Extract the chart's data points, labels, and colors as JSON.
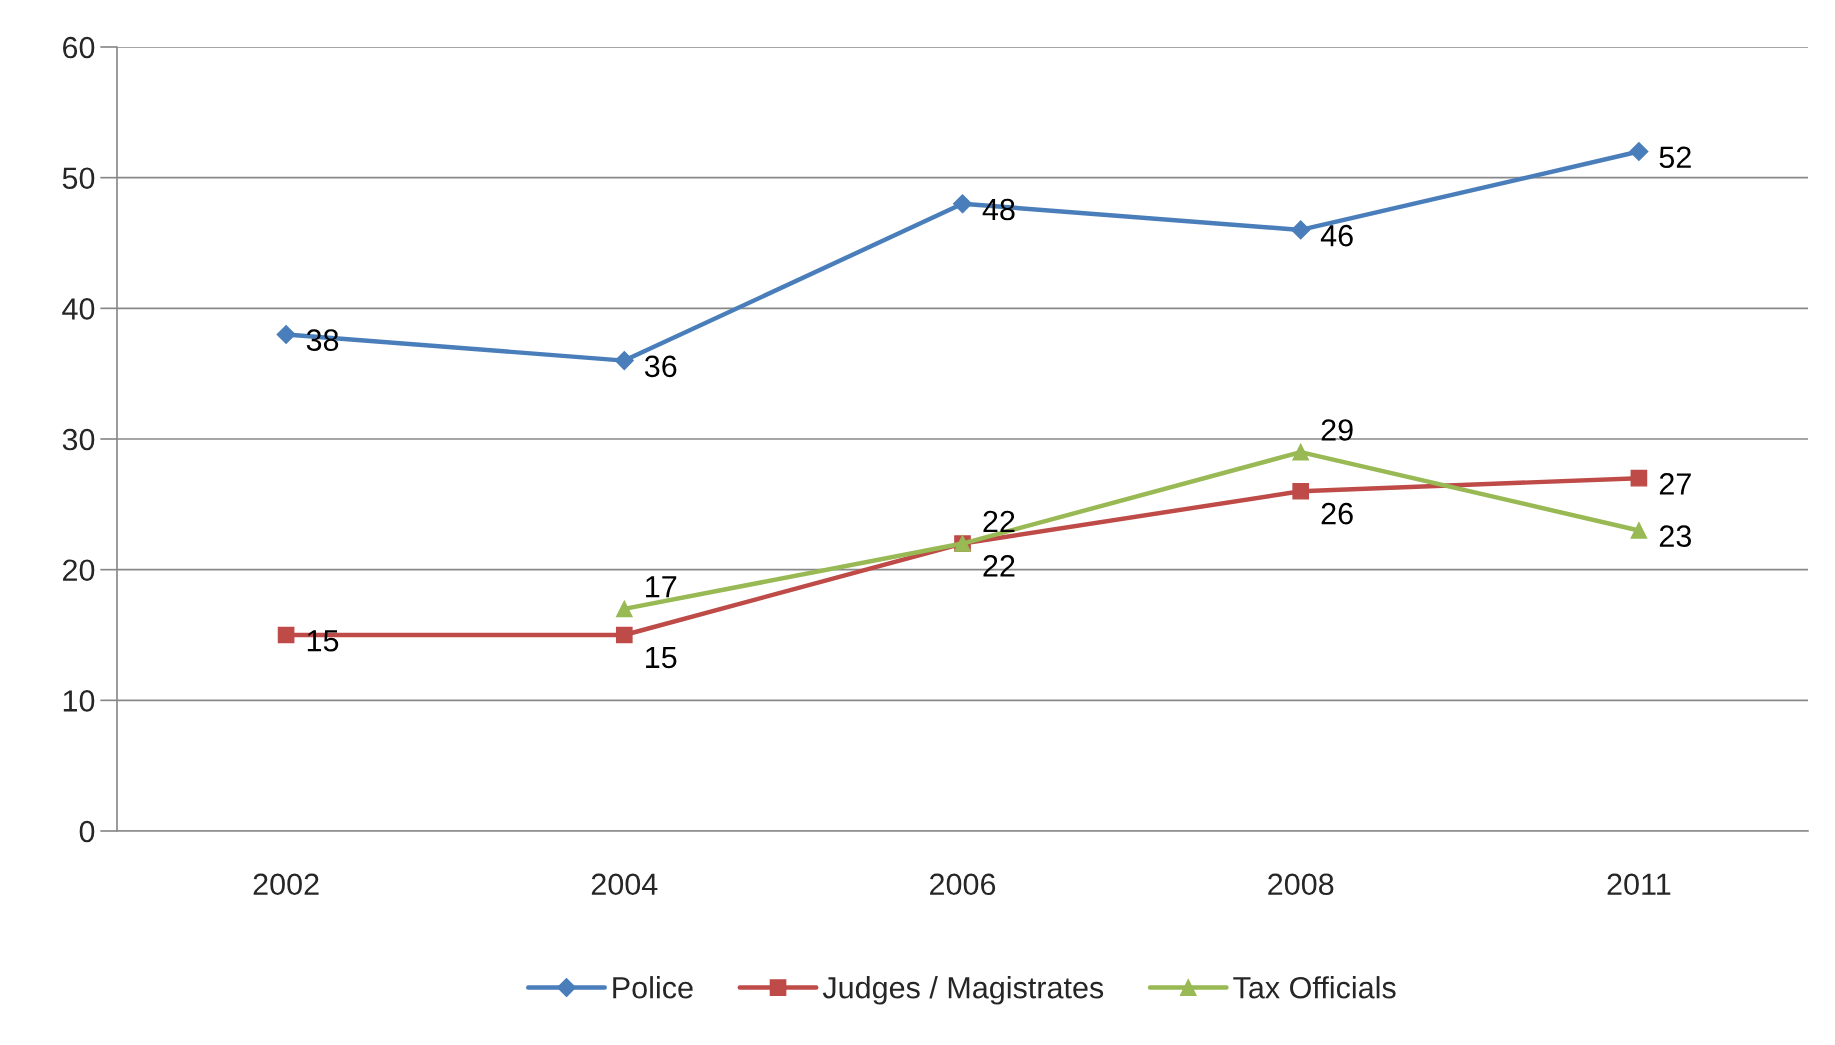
{
  "chart_data": {
    "type": "line",
    "categories": [
      "2002",
      "2004",
      "2006",
      "2008",
      "2011"
    ],
    "series": [
      {
        "name": "Police",
        "color": "#4a7ebb",
        "marker": "diamond",
        "values": [
          38,
          36,
          48,
          46,
          52
        ]
      },
      {
        "name": "Judges / Magistrates",
        "color": "#be4b48",
        "marker": "square",
        "values": [
          15,
          15,
          22,
          26,
          27
        ]
      },
      {
        "name": "Tax Officials",
        "color": "#98b954",
        "marker": "triangle",
        "values": [
          null,
          17,
          22,
          29,
          23
        ]
      }
    ],
    "ylim": [
      0,
      60
    ],
    "yticks": [
      0,
      10,
      20,
      30,
      40,
      50,
      60
    ],
    "grid": "y",
    "legend": "bottom",
    "data_labels": true,
    "line_style": "solid"
  }
}
